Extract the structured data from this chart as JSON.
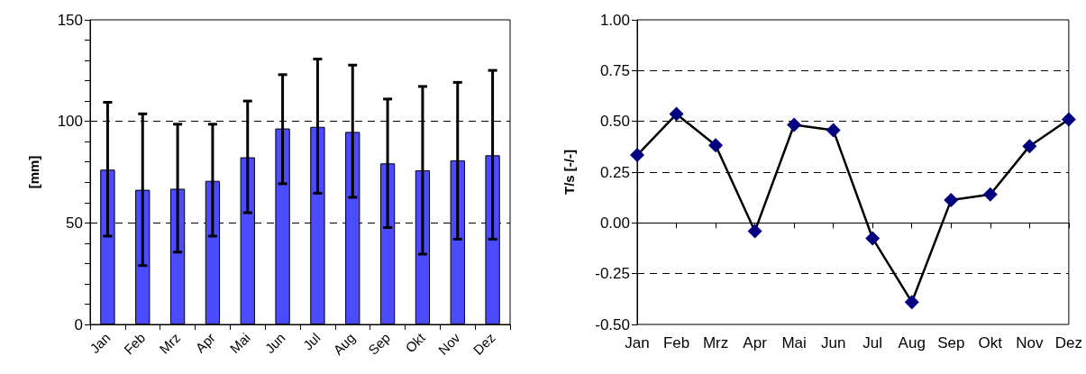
{
  "chart_data": [
    {
      "type": "bar",
      "ylabel": "[mm]",
      "categories": [
        "Jan",
        "Feb",
        "Mrz",
        "Apr",
        "Mai",
        "Jun",
        "Jul",
        "Aug",
        "Sep",
        "Okt",
        "Nov",
        "Dez"
      ],
      "values": [
        76.2,
        66.3,
        66.8,
        70.7,
        82.3,
        96.5,
        97.3,
        94.8,
        79.3,
        75.9,
        80.8,
        83.3
      ],
      "errors": [
        [
          43.5,
          109.4
        ],
        [
          29,
          103.7
        ],
        [
          35.6,
          98.6
        ],
        [
          43.5,
          98.6
        ],
        [
          55,
          110
        ],
        [
          69.3,
          123
        ],
        [
          64.6,
          130.7
        ],
        [
          62.6,
          127.7
        ],
        [
          47.7,
          111
        ],
        [
          34.6,
          117.2
        ],
        [
          42,
          119.2
        ],
        [
          42,
          125.1
        ]
      ],
      "color": "#4b4bff",
      "ylim": [
        0,
        150
      ],
      "yticks": [
        0,
        {
          "value": 10,
          "label": null
        },
        {
          "value": 20,
          "label": null
        },
        {
          "value": 30,
          "label": null
        },
        {
          "value": 40,
          "label": null
        },
        50,
        {
          "value": 60,
          "label": null
        },
        {
          "value": 70,
          "label": null
        },
        {
          "value": 80,
          "label": null
        },
        {
          "value": 90,
          "label": null
        },
        100,
        {
          "value": 110,
          "label": null
        },
        {
          "value": 120,
          "label": null
        },
        {
          "value": 130,
          "label": null
        },
        {
          "value": 140,
          "label": null
        },
        150
      ],
      "grid": "y"
    },
    {
      "type": "line",
      "ylabel": "T/s [-/-]",
      "categories": [
        "Jan",
        "Feb",
        "Mrz",
        "Apr",
        "Mai",
        "Jun",
        "Jul",
        "Aug",
        "Sep",
        "Okt",
        "Nov",
        "Dez"
      ],
      "values": [
        0.334,
        0.536,
        0.382,
        -0.041,
        0.483,
        0.456,
        -0.076,
        -0.39,
        0.112,
        0.14,
        0.378,
        0.51
      ],
      "color": "#000080",
      "marker": "diamond",
      "line_style": "solid",
      "ylim": [
        -0.5,
        1
      ],
      "yticks": [
        {
          "value": -0.5,
          "label": "-0.50"
        },
        {
          "value": -0.25,
          "label": "-0.25"
        },
        {
          "value": 0,
          "label": "0.00"
        },
        {
          "value": 0.25,
          "label": "0.25"
        },
        {
          "value": 0.5,
          "label": "0.50"
        },
        {
          "value": 0.75,
          "label": "0.75"
        },
        {
          "value": 1,
          "label": "1.00"
        }
      ],
      "grid": "y"
    }
  ]
}
